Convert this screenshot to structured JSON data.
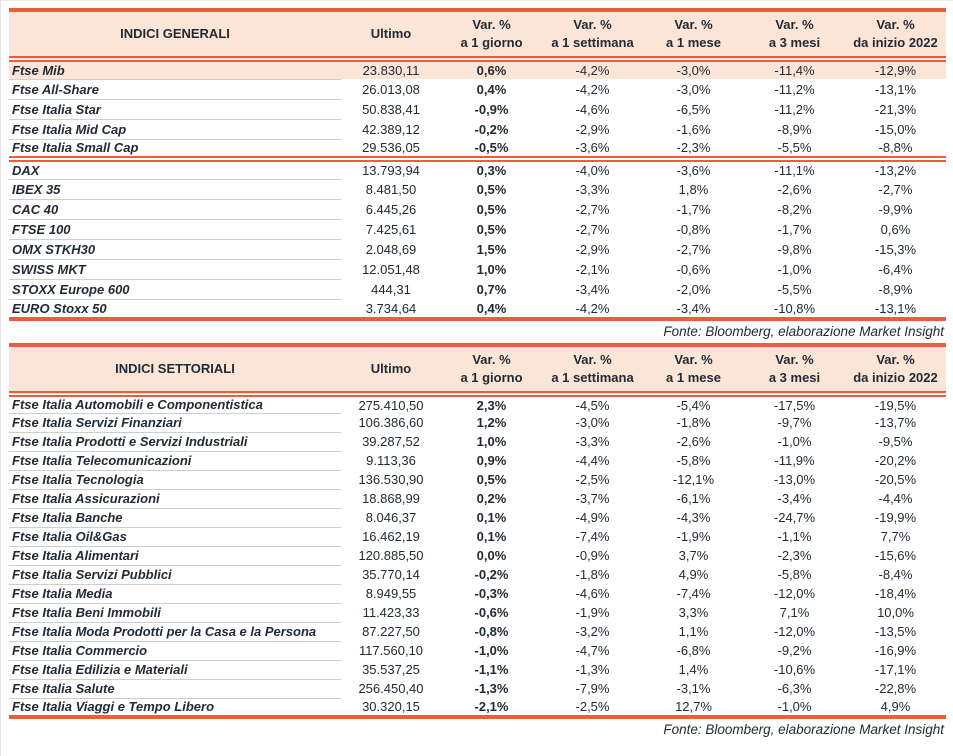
{
  "colors": {
    "accent": "#EE5C40",
    "header_bg": "#FBE5D6",
    "highlight_bg": "#FBE5D6",
    "text": "#222B35",
    "row_separator": "#CFCECE"
  },
  "source_note": "Fonte: Bloomberg, elaborazione Market Insight",
  "column_headers": {
    "ultimo": "Ultimo",
    "vars": [
      {
        "l1": "Var. %",
        "l2": "a 1 giorno"
      },
      {
        "l1": "Var. %",
        "l2": "a 1 settimana"
      },
      {
        "l1": "Var. %",
        "l2": "a 1 mese"
      },
      {
        "l1": "Var. %",
        "l2": "a 3 mesi"
      },
      {
        "l1": "Var. %",
        "l2": "da inizio 2022"
      }
    ]
  },
  "tables": [
    {
      "title": "INDICI GENERALI",
      "groups": [
        {
          "rows": [
            {
              "name": "Ftse Mib",
              "ultimo": "23.830,11",
              "d1": "0,6%",
              "w1": "-4,2%",
              "m1": "-3,0%",
              "m3": "-11,4%",
              "ytd": "-12,9%",
              "highlight": true
            },
            {
              "name": "Ftse All-Share",
              "ultimo": "26.013,08",
              "d1": "0,4%",
              "w1": "-4,2%",
              "m1": "-3,0%",
              "m3": "-11,2%",
              "ytd": "-13,1%"
            },
            {
              "name": "Ftse Italia Star",
              "ultimo": "50.838,41",
              "d1": "-0,9%",
              "w1": "-4,6%",
              "m1": "-6,5%",
              "m3": "-11,2%",
              "ytd": "-21,3%"
            },
            {
              "name": "Ftse Italia Mid Cap",
              "ultimo": "42.389,12",
              "d1": "-0,2%",
              "w1": "-2,9%",
              "m1": "-1,6%",
              "m3": "-8,9%",
              "ytd": "-15,0%"
            },
            {
              "name": "Ftse Italia Small Cap",
              "ultimo": "29.536,05",
              "d1": "-0,5%",
              "w1": "-3,6%",
              "m1": "-2,3%",
              "m3": "-5,5%",
              "ytd": "-8,8%"
            }
          ]
        },
        {
          "rows": [
            {
              "name": "DAX",
              "ultimo": "13.793,94",
              "d1": "0,3%",
              "w1": "-4,0%",
              "m1": "-3,6%",
              "m3": "-11,1%",
              "ytd": "-13,2%"
            },
            {
              "name": "IBEX 35",
              "ultimo": "8.481,50",
              "d1": "0,5%",
              "w1": "-3,3%",
              "m1": "1,8%",
              "m3": "-2,6%",
              "ytd": "-2,7%"
            },
            {
              "name": "CAC 40",
              "ultimo": "6.445,26",
              "d1": "0,5%",
              "w1": "-2,7%",
              "m1": "-1,7%",
              "m3": "-8,2%",
              "ytd": "-9,9%"
            },
            {
              "name": "FTSE 100",
              "ultimo": "7.425,61",
              "d1": "0,5%",
              "w1": "-2,7%",
              "m1": "-0,8%",
              "m3": "-1,7%",
              "ytd": "0,6%"
            },
            {
              "name": "OMX STKH30",
              "ultimo": "2.048,69",
              "d1": "1,5%",
              "w1": "-2,9%",
              "m1": "-2,7%",
              "m3": "-9,8%",
              "ytd": "-15,3%"
            },
            {
              "name": "SWISS MKT",
              "ultimo": "12.051,48",
              "d1": "1,0%",
              "w1": "-2,1%",
              "m1": "-0,6%",
              "m3": "-1,0%",
              "ytd": "-6,4%"
            },
            {
              "name": "STOXX Europe 600",
              "ultimo": "444,31",
              "d1": "0,7%",
              "w1": "-3,4%",
              "m1": "-2,0%",
              "m3": "-5,5%",
              "ytd": "-8,9%"
            },
            {
              "name": "EURO Stoxx 50",
              "ultimo": "3.734,64",
              "d1": "0,4%",
              "w1": "-4,2%",
              "m1": "-3,4%",
              "m3": "-10,8%",
              "ytd": "-13,1%"
            }
          ]
        }
      ]
    },
    {
      "title": "INDICI SETTORIALI",
      "groups": [
        {
          "rows": [
            {
              "name": "Ftse Italia Automobili e Componentistica",
              "ultimo": "275.410,50",
              "d1": "2,3%",
              "w1": "-4,5%",
              "m1": "-5,4%",
              "m3": "-17,5%",
              "ytd": "-19,5%"
            },
            {
              "name": "Ftse Italia Servizi Finanziari",
              "ultimo": "106.386,60",
              "d1": "1,2%",
              "w1": "-3,0%",
              "m1": "-1,8%",
              "m3": "-9,7%",
              "ytd": "-13,7%"
            },
            {
              "name": "Ftse Italia Prodotti e Servizi Industriali",
              "ultimo": "39.287,52",
              "d1": "1,0%",
              "w1": "-3,3%",
              "m1": "-2,6%",
              "m3": "-1,0%",
              "ytd": "-9,5%"
            },
            {
              "name": "Ftse Italia Telecomunicazioni",
              "ultimo": "9.113,36",
              "d1": "0,9%",
              "w1": "-4,4%",
              "m1": "-5,8%",
              "m3": "-11,9%",
              "ytd": "-20,2%"
            },
            {
              "name": "Ftse Italia Tecnologia",
              "ultimo": "136.530,90",
              "d1": "0,5%",
              "w1": "-2,5%",
              "m1": "-12,1%",
              "m3": "-13,0%",
              "ytd": "-20,5%"
            },
            {
              "name": "Ftse Italia Assicurazioni",
              "ultimo": "18.868,99",
              "d1": "0,2%",
              "w1": "-3,7%",
              "m1": "-6,1%",
              "m3": "-3,4%",
              "ytd": "-4,4%"
            },
            {
              "name": "Ftse Italia Banche",
              "ultimo": "8.046,37",
              "d1": "0,1%",
              "w1": "-4,9%",
              "m1": "-4,3%",
              "m3": "-24,7%",
              "ytd": "-19,9%"
            },
            {
              "name": "Ftse Italia Oil&Gas",
              "ultimo": "16.462,19",
              "d1": "0,1%",
              "w1": "-7,4%",
              "m1": "-1,9%",
              "m3": "-1,1%",
              "ytd": "7,7%"
            },
            {
              "name": "Ftse Italia Alimentari",
              "ultimo": "120.885,50",
              "d1": "0,0%",
              "w1": "-0,9%",
              "m1": "3,7%",
              "m3": "-2,3%",
              "ytd": "-15,6%"
            },
            {
              "name": "Ftse Italia Servizi Pubblici",
              "ultimo": "35.770,14",
              "d1": "-0,2%",
              "w1": "-1,8%",
              "m1": "4,9%",
              "m3": "-5,8%",
              "ytd": "-8,4%"
            },
            {
              "name": "Ftse Italia Media",
              "ultimo": "8.949,55",
              "d1": "-0,3%",
              "w1": "-4,6%",
              "m1": "-7,4%",
              "m3": "-12,0%",
              "ytd": "-18,4%"
            },
            {
              "name": "Ftse Italia Beni Immobili",
              "ultimo": "11.423,33",
              "d1": "-0,6%",
              "w1": "-1,9%",
              "m1": "3,3%",
              "m3": "7,1%",
              "ytd": "10,0%"
            },
            {
              "name": "Ftse Italia Moda Prodotti per la Casa e la Persona",
              "ultimo": "87.227,50",
              "d1": "-0,8%",
              "w1": "-3,2%",
              "m1": "1,1%",
              "m3": "-12,0%",
              "ytd": "-13,5%"
            },
            {
              "name": "Ftse Italia Commercio",
              "ultimo": "117.560,10",
              "d1": "-1,0%",
              "w1": "-4,7%",
              "m1": "-6,8%",
              "m3": "-9,2%",
              "ytd": "-16,9%"
            },
            {
              "name": "Ftse Italia Edilizia e Materiali",
              "ultimo": "35.537,25",
              "d1": "-1,1%",
              "w1": "-1,3%",
              "m1": "1,4%",
              "m3": "-10,6%",
              "ytd": "-17,1%"
            },
            {
              "name": "Ftse Italia Salute",
              "ultimo": "256.450,40",
              "d1": "-1,3%",
              "w1": "-7,9%",
              "m1": "-3,1%",
              "m3": "-6,3%",
              "ytd": "-22,8%"
            },
            {
              "name": "Ftse Italia Viaggi e Tempo Libero",
              "ultimo": "30.320,15",
              "d1": "-2,1%",
              "w1": "-2,5%",
              "m1": "12,7%",
              "m3": "-1,0%",
              "ytd": "4,9%"
            }
          ]
        }
      ]
    }
  ]
}
